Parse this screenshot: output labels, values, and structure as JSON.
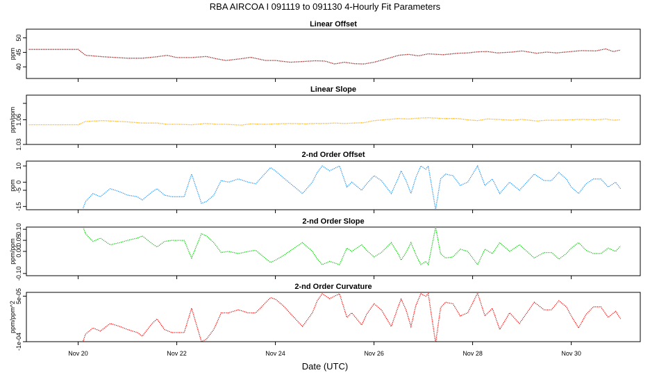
{
  "chart_data": {
    "title": "RBA   AIRCOA I   091119 to 091130   4-Hourly Fit Parameters",
    "xlabel": "Date (UTC)",
    "x_ticks": [
      {
        "day": 20,
        "label": "Nov 20"
      },
      {
        "day": 22,
        "label": "Nov 22"
      },
      {
        "day": 24,
        "label": "Nov 24"
      },
      {
        "day": 26,
        "label": "Nov 26"
      },
      {
        "day": 28,
        "label": "Nov 28"
      },
      {
        "day": 30,
        "label": "Nov 30"
      }
    ],
    "xlim": [
      18.95,
      31.4
    ],
    "panels": [
      {
        "type": "line",
        "title": "Linear Offset",
        "ylabel": "ppm",
        "color": "#8b0000",
        "ylim": [
          36,
          53
        ],
        "y_ticks": [
          {
            "value": 40,
            "label": "40"
          },
          {
            "value": 45,
            "label": "45"
          },
          {
            "value": 50,
            "label": "50"
          }
        ],
        "x": [
          19.0,
          19.9,
          20.0,
          20.15,
          20.5,
          21.0,
          21.3,
          21.6,
          21.8,
          22.0,
          22.3,
          22.6,
          22.8,
          23.0,
          23.3,
          23.5,
          23.8,
          24.0,
          24.3,
          24.6,
          24.8,
          25.0,
          25.2,
          25.4,
          25.6,
          25.8,
          26.0,
          26.3,
          26.5,
          26.7,
          26.9,
          27.1,
          27.4,
          27.7,
          27.9,
          28.1,
          28.3,
          28.5,
          28.8,
          29.0,
          29.3,
          29.5,
          29.7,
          30.0,
          30.2,
          30.5,
          30.7,
          30.85,
          31.0
        ],
        "values": [
          46.0,
          46.0,
          46.0,
          44.0,
          43.5,
          43.0,
          43.0,
          43.5,
          44.0,
          43.2,
          43.2,
          43.6,
          42.8,
          42.2,
          42.8,
          43.3,
          42.2,
          42.2,
          41.6,
          41.9,
          42.1,
          42.0,
          41.0,
          41.6,
          41.1,
          41.0,
          41.6,
          43.0,
          44.0,
          44.3,
          43.8,
          44.5,
          44.2,
          44.7,
          44.8,
          45.2,
          45.3,
          44.8,
          45.1,
          45.5,
          44.7,
          45.1,
          44.8,
          45.3,
          45.6,
          45.5,
          46.2,
          45.3,
          45.8
        ]
      },
      {
        "type": "line",
        "title": "Linear Slope",
        "ylabel": "ppm/ppm",
        "color": "#ffa500",
        "ylim": [
          1.03,
          1.09
        ],
        "y_ticks": [
          {
            "value": 1.03,
            "label": "1.03"
          },
          {
            "value": 1.06,
            "label": "1.06"
          },
          {
            "value": 1.08,
            "label": ""
          }
        ],
        "x": [
          19.0,
          19.9,
          20.0,
          20.15,
          20.5,
          21.0,
          21.3,
          21.6,
          21.8,
          22.0,
          22.3,
          22.6,
          22.8,
          23.0,
          23.3,
          23.5,
          23.8,
          24.0,
          24.3,
          24.6,
          24.8,
          25.0,
          25.2,
          25.4,
          25.6,
          25.8,
          26.0,
          26.3,
          26.5,
          26.7,
          26.9,
          27.1,
          27.4,
          27.7,
          27.9,
          28.1,
          28.3,
          28.5,
          28.8,
          29.0,
          29.3,
          29.5,
          29.7,
          30.0,
          30.2,
          30.5,
          30.7,
          30.85,
          31.0
        ],
        "values": [
          1.054,
          1.054,
          1.054,
          1.058,
          1.059,
          1.0575,
          1.056,
          1.056,
          1.0545,
          1.0545,
          1.054,
          1.0555,
          1.0545,
          1.0545,
          1.0535,
          1.055,
          1.0545,
          1.055,
          1.0555,
          1.055,
          1.0555,
          1.0555,
          1.056,
          1.0555,
          1.056,
          1.0565,
          1.059,
          1.0605,
          1.0615,
          1.061,
          1.062,
          1.0625,
          1.0615,
          1.0615,
          1.06,
          1.059,
          1.061,
          1.0605,
          1.0595,
          1.0605,
          1.0585,
          1.0595,
          1.0595,
          1.06,
          1.0605,
          1.06,
          1.061,
          1.0595,
          1.06
        ]
      },
      {
        "type": "line",
        "title": "2-nd Order Offset",
        "ylabel": "ppm",
        "color": "#1e90ff",
        "ylim": [
          -17,
          13
        ],
        "y_ticks": [
          {
            "value": -15,
            "label": "-15"
          },
          {
            "value": -5,
            "label": "-5"
          },
          {
            "value": 0,
            "label": "0"
          },
          {
            "value": 10,
            "label": "10"
          }
        ],
        "x": [
          20.1,
          20.15,
          20.3,
          20.45,
          20.65,
          20.85,
          21.0,
          21.2,
          21.3,
          21.5,
          21.6,
          21.75,
          21.9,
          22.15,
          22.3,
          22.5,
          22.6,
          22.75,
          22.9,
          23.05,
          23.25,
          23.45,
          23.6,
          23.9,
          24.0,
          24.15,
          24.35,
          24.55,
          24.75,
          24.85,
          24.95,
          25.1,
          25.3,
          25.45,
          25.55,
          25.75,
          25.85,
          26.0,
          26.15,
          26.35,
          26.5,
          26.55,
          26.65,
          26.75,
          26.85,
          26.95,
          27.05,
          27.1,
          27.25,
          27.35,
          27.45,
          27.6,
          27.75,
          27.9,
          28.1,
          28.25,
          28.4,
          28.55,
          28.75,
          28.95,
          29.1,
          29.25,
          29.45,
          29.6,
          29.75,
          29.9,
          30.0,
          30.15,
          30.3,
          30.45,
          30.6,
          30.75,
          30.9,
          31.0
        ],
        "values": [
          -16.0,
          -12.0,
          -7.0,
          -9.0,
          -4.0,
          -6.0,
          -8.0,
          -9.0,
          -11.0,
          -6.0,
          -4.0,
          -8.0,
          -9.0,
          -9.0,
          5.0,
          -13.0,
          -12.0,
          -8.0,
          1.0,
          0.0,
          2.0,
          0.0,
          -1.0,
          9.0,
          7.0,
          3.0,
          -2.0,
          -7.0,
          0.0,
          6.0,
          10.0,
          7.0,
          10.0,
          -3.0,
          0.0,
          -5.0,
          -1.0,
          4.0,
          1.0,
          -7.0,
          3.0,
          7.0,
          1.0,
          -7.0,
          3.0,
          10.0,
          8.0,
          10.0,
          -17.0,
          2.0,
          5.0,
          4.0,
          -2.0,
          0.0,
          10.0,
          -2.0,
          2.0,
          -7.0,
          0.0,
          -5.0,
          0.0,
          5.0,
          1.0,
          1.0,
          6.0,
          2.0,
          -3.0,
          -7.0,
          -1.0,
          2.0,
          2.0,
          -3.0,
          0.0,
          -4.0
        ]
      },
      {
        "type": "line",
        "title": "2-nd Order Slope",
        "ylabel": "ppm/ppm",
        "color": "#00cc00",
        "ylim": [
          -0.11,
          0.11
        ],
        "y_ticks": [
          {
            "value": -0.1,
            "label": "-0.10"
          },
          {
            "value": 0.0,
            "label": "0.00"
          },
          {
            "value": 0.05,
            "label": "0.05"
          },
          {
            "value": 0.1,
            "label": "0.10"
          }
        ],
        "x": [
          20.1,
          20.15,
          20.3,
          20.45,
          20.65,
          20.85,
          21.0,
          21.2,
          21.3,
          21.5,
          21.6,
          21.75,
          21.9,
          22.15,
          22.3,
          22.5,
          22.6,
          22.75,
          22.9,
          23.05,
          23.25,
          23.45,
          23.6,
          23.9,
          24.0,
          24.15,
          24.35,
          24.55,
          24.75,
          24.85,
          24.95,
          25.1,
          25.3,
          25.45,
          25.55,
          25.75,
          25.85,
          26.0,
          26.15,
          26.35,
          26.5,
          26.55,
          26.65,
          26.75,
          26.85,
          26.95,
          27.05,
          27.1,
          27.25,
          27.35,
          27.45,
          27.6,
          27.75,
          27.9,
          28.1,
          28.25,
          28.4,
          28.55,
          28.75,
          28.95,
          29.1,
          29.25,
          29.45,
          29.6,
          29.75,
          29.9,
          30.0,
          30.15,
          30.3,
          30.45,
          30.6,
          30.75,
          30.9,
          31.0
        ],
        "values": [
          0.11,
          0.08,
          0.045,
          0.06,
          0.03,
          0.04,
          0.05,
          0.06,
          0.07,
          0.035,
          0.02,
          0.045,
          0.05,
          0.05,
          -0.03,
          0.08,
          0.07,
          0.04,
          -0.005,
          0.0,
          -0.01,
          0.0,
          0.005,
          -0.05,
          -0.04,
          -0.02,
          0.01,
          0.04,
          0.0,
          -0.035,
          -0.06,
          -0.045,
          -0.06,
          0.015,
          0.0,
          0.03,
          0.005,
          -0.025,
          -0.005,
          0.04,
          -0.015,
          -0.04,
          -0.005,
          0.04,
          -0.015,
          -0.06,
          -0.045,
          -0.06,
          0.11,
          -0.01,
          -0.03,
          -0.025,
          0.01,
          0.0,
          -0.06,
          0.01,
          -0.01,
          0.04,
          0.0,
          0.03,
          0.0,
          -0.03,
          -0.005,
          -0.005,
          -0.035,
          -0.01,
          0.015,
          0.04,
          0.005,
          -0.01,
          -0.01,
          0.015,
          0.0,
          0.025
        ]
      },
      {
        "type": "line",
        "title": "2-nd Order Curvature",
        "ylabel": "ppm/ppm^2",
        "color": "#ff0000",
        "ylim": [
          -0.0001,
          6.25e-05
        ],
        "y_ticks": [
          {
            "value": -0.0001,
            "label": "-1e-04"
          },
          {
            "value": 5e-05,
            "label": "5e-05"
          }
        ],
        "x": [
          20.1,
          20.15,
          20.3,
          20.45,
          20.65,
          20.85,
          21.0,
          21.2,
          21.3,
          21.5,
          21.6,
          21.75,
          21.9,
          22.15,
          22.3,
          22.5,
          22.6,
          22.75,
          22.9,
          23.05,
          23.25,
          23.45,
          23.6,
          23.9,
          24.0,
          24.15,
          24.35,
          24.55,
          24.75,
          24.85,
          24.95,
          25.1,
          25.3,
          25.45,
          25.55,
          25.75,
          25.85,
          26.0,
          26.15,
          26.35,
          26.5,
          26.55,
          26.65,
          26.75,
          26.85,
          26.95,
          27.05,
          27.1,
          27.25,
          27.35,
          27.45,
          27.6,
          27.75,
          27.9,
          28.1,
          28.25,
          28.4,
          28.55,
          28.75,
          28.95,
          29.1,
          29.25,
          29.45,
          29.6,
          29.75,
          29.9,
          30.0,
          30.15,
          30.3,
          30.45,
          30.6,
          30.75,
          30.9,
          31.0
        ],
        "values": [
          -9.8e-05,
          -7.5e-05,
          -5.5e-05,
          -6.5e-05,
          -4e-05,
          -5e-05,
          -6e-05,
          -7e-05,
          -8.2e-05,
          -4e-05,
          -2.5e-05,
          -6e-05,
          -7e-05,
          -7e-05,
          1e-05,
          -0.0001,
          -9.2e-05,
          -6e-05,
          -5e-06,
          -5e-06,
          5e-06,
          -5e-06,
          -5e-06,
          4.5e-05,
          4e-05,
          2e-05,
          -1.5e-05,
          -5e-05,
          -5e-06,
          3.5e-05,
          5.8e-05,
          4.2e-05,
          5.8e-05,
          -2e-05,
          -5e-06,
          -4.5e-05,
          -1e-05,
          2.5e-05,
          5e-06,
          -5e-05,
          2e-05,
          4e-05,
          5e-06,
          -5e-05,
          2e-05,
          5.8e-05,
          5e-05,
          5.8e-05,
          -0.000105,
          1.2e-05,
          3e-05,
          2.5e-05,
          -1.5e-05,
          -5e-06,
          6e-05,
          -1.5e-05,
          1e-05,
          -6e-05,
          -5e-06,
          -4e-05,
          -5e-06,
          3e-05,
          5e-06,
          5e-06,
          3.5e-05,
          1.5e-05,
          -1.5e-05,
          -5.5e-05,
          -1e-05,
          1.5e-05,
          1.5e-05,
          -2e-05,
          0.0,
          -2.5e-05
        ]
      }
    ]
  }
}
